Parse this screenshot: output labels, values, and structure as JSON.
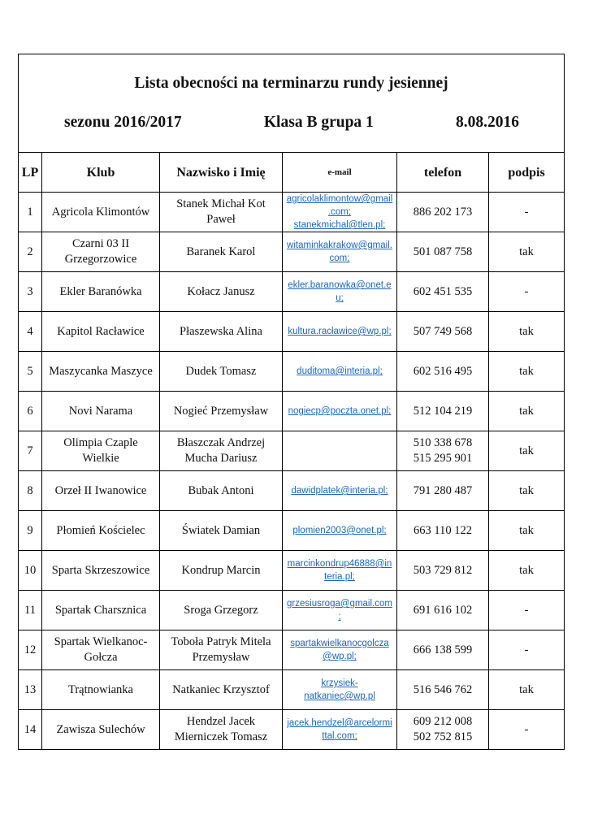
{
  "title": {
    "line1": "Lista obecności na terminarzu rundy jesiennej",
    "season": "sezonu 2016/2017",
    "class": "Klasa B grupa 1",
    "date": "8.08.2016"
  },
  "headers": {
    "lp": "LP",
    "club": "Klub",
    "name": "Nazwisko i Imię",
    "email": "e-mail",
    "phone": "telefon",
    "sign": "podpis"
  },
  "rows": [
    {
      "lp": "1",
      "club": "Agricola Klimontów",
      "name": "Stanek Michał          Kot\nPaweł",
      "email": "agricolaklimontow@gmail\n.com;\nstanekmichal@tlen.pl;",
      "phone": "886 202 173",
      "sign": "-"
    },
    {
      "lp": "2",
      "club": "Czarni 03 II\nGrzegorzowice",
      "name": "Baranek Karol",
      "email": "witaminkakrakow@gmail.\ncom;",
      "phone": "501 087 758",
      "sign": "tak"
    },
    {
      "lp": "3",
      "club": "Ekler Baranówka",
      "name": "Kołacz Janusz",
      "email": "ekler.baranowka@onet.e\nu;",
      "phone": "602 451 535",
      "sign": "-"
    },
    {
      "lp": "4",
      "club": "Kapitol Racławice",
      "name": "Płaszewska Alina",
      "email": "kultura.racławice@wp.pl;",
      "phone": "507 749 568",
      "sign": "tak"
    },
    {
      "lp": "5",
      "club": "Maszycanka Maszyce",
      "name": "Dudek Tomasz",
      "email": "duditoma@interia.pl;",
      "phone": "602 516 495",
      "sign": "tak"
    },
    {
      "lp": "6",
      "club": "Novi Narama",
      "name": "Nogieć Przemysław",
      "email": "nogiecp@poczta.onet.pl;",
      "phone": "512 104 219",
      "sign": "tak"
    },
    {
      "lp": "7",
      "club": "Olimpia Czaple\nWielkie",
      "name": "Błaszczak Andrzej\nMucha Dariusz",
      "email": "",
      "phone": "510 338 678\n515 295 901",
      "sign": "tak"
    },
    {
      "lp": "8",
      "club": "Orzeł II Iwanowice",
      "name": "Bubak Antoni",
      "email": "dawidplatek@interia.pl;",
      "phone": "791 280 487",
      "sign": "tak"
    },
    {
      "lp": "9",
      "club": "Płomień Kościelec",
      "name": "Światek Damian",
      "email": "plomien2003@onet.pl;",
      "phone": "663 110 122",
      "sign": "tak"
    },
    {
      "lp": "10",
      "club": "Sparta Skrzeszowice",
      "name": "Kondrup Marcin",
      "email": "marcinkondrup46888@in\nteria.pl;",
      "phone": "503 729 812",
      "sign": "tak"
    },
    {
      "lp": "11",
      "club": "Spartak Charsznica",
      "name": "Sroga Grzegorz",
      "email": "grzesiusroga@gmail.com\n;",
      "phone": "691 616 102",
      "sign": "-"
    },
    {
      "lp": "12",
      "club": "Spartak Wielkanoc-\nGołcza",
      "name": "Toboła Patryk  Mitela\nPrzemysław",
      "email": "spartakwielkanocgolcza\n@wp.pl;",
      "phone": "666 138 599",
      "sign": "-"
    },
    {
      "lp": "13",
      "club": "Trątnowianka",
      "name": "Natkaniec Krzysztof",
      "email": "krzysiek-\nnatkaniec@wp.pl",
      "phone": "516 546 762",
      "sign": "tak"
    },
    {
      "lp": "14",
      "club": "Zawisza Sulechów",
      "name": "Hendzel Jacek\nMierniczek Tomasz",
      "email": "jacek.hendzel@arcelormi\nttal.com;",
      "phone": "609 212 008\n502 752 815",
      "sign": "-"
    }
  ],
  "link_color": "#1a66c8"
}
